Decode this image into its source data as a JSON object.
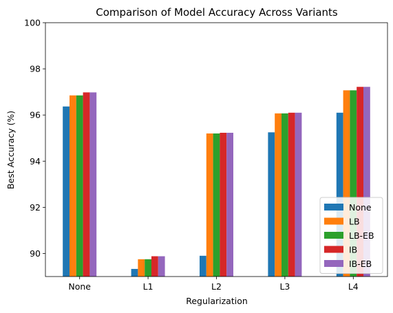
{
  "chart_data": {
    "type": "bar",
    "title": "Comparison of Model Accuracy Across Variants",
    "xlabel": "Regularization",
    "ylabel": "Best Accuracy (%)",
    "categories": [
      "None",
      "L1",
      "L2",
      "L3",
      "L4"
    ],
    "ylim": [
      89,
      100
    ],
    "yticks": [
      90,
      92,
      94,
      96,
      98,
      100
    ],
    "grid": false,
    "legend_position": "lower-right",
    "series": [
      {
        "name": "None",
        "color": "#1f77b4",
        "values": [
          96.37,
          89.33,
          89.9,
          95.25,
          96.1
        ]
      },
      {
        "name": "LB",
        "color": "#ff7f0e",
        "values": [
          96.85,
          89.75,
          95.2,
          96.07,
          97.07
        ]
      },
      {
        "name": "LB-EB",
        "color": "#2ca02c",
        "values": [
          96.85,
          89.75,
          95.2,
          96.07,
          97.07
        ]
      },
      {
        "name": "IB",
        "color": "#d62728",
        "values": [
          96.98,
          89.88,
          95.23,
          96.1,
          97.22
        ]
      },
      {
        "name": "IB-EB",
        "color": "#9467bd",
        "values": [
          96.98,
          89.88,
          95.23,
          96.1,
          97.22
        ]
      }
    ]
  }
}
